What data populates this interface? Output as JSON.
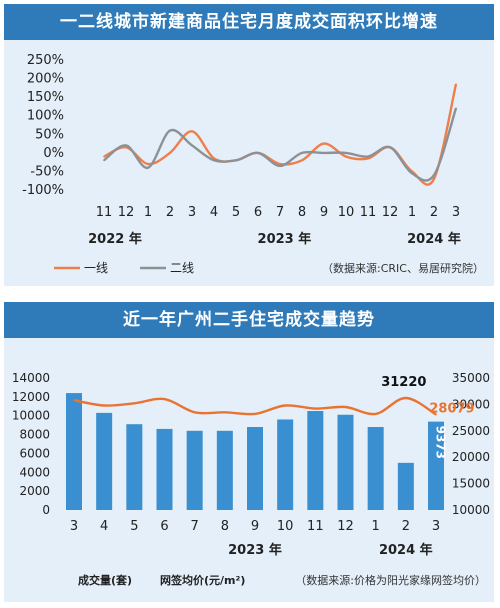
{
  "chart_data": [
    {
      "type": "line",
      "title": "一二线城市新建商品住宅月度成交面积环比增速",
      "y_ticks": [
        "250%",
        "200%",
        "150%",
        "100%",
        "50%",
        "0%",
        "-50%",
        "-100%"
      ],
      "ylim": [
        -100,
        250
      ],
      "categories": [
        "11",
        "12",
        "1",
        "2",
        "3",
        "4",
        "5",
        "6",
        "7",
        "8",
        "9",
        "10",
        "11",
        "12",
        "1",
        "2",
        "3"
      ],
      "year_labels": [
        "2022 年",
        "2023 年",
        "2024 年"
      ],
      "series": [
        {
          "name": "一线",
          "color": "#ef7f4a",
          "values": [
            -10,
            15,
            -30,
            0,
            58,
            -15,
            -20,
            0,
            -30,
            -20,
            25,
            -10,
            -15,
            15,
            -50,
            -70,
            185
          ]
        },
        {
          "name": "二线",
          "color": "#8c9196",
          "values": [
            -20,
            20,
            -40,
            60,
            20,
            -20,
            -20,
            0,
            -35,
            0,
            0,
            0,
            -10,
            15,
            -55,
            -60,
            120
          ]
        }
      ],
      "legend_position": "bottom",
      "source": "（数据来源:CRIC、易居研究院）",
      "grid": false
    },
    {
      "type": "bar",
      "title": "近一年广州二手住宅成交量趋势",
      "categories": [
        "3",
        "4",
        "5",
        "6",
        "7",
        "8",
        "9",
        "10",
        "11",
        "12",
        "1",
        "2",
        "3"
      ],
      "year_labels": [
        "2023 年",
        "2024 年"
      ],
      "y_left_ticks": [
        "14000",
        "12000",
        "10000",
        "8000",
        "6000",
        "4000",
        "2000",
        "0"
      ],
      "y_right_ticks": [
        "35000",
        "30000",
        "25000",
        "20000",
        "15000",
        "10000"
      ],
      "ylim_left": [
        0,
        14000
      ],
      "ylim_right": [
        10000,
        35000
      ],
      "series": [
        {
          "name": "成交量(套)",
          "kind": "bar",
          "axis": "left",
          "color": "#3a8fd0",
          "values": [
            12400,
            10300,
            9100,
            8600,
            8400,
            8400,
            8800,
            9600,
            10500,
            10100,
            8800,
            5000,
            9373
          ]
        },
        {
          "name": "网签均价(元/m²)",
          "kind": "line",
          "axis": "right",
          "color": "#e87432",
          "values": [
            30800,
            29800,
            30200,
            31000,
            28500,
            28500,
            28200,
            29800,
            29200,
            29500,
            28200,
            31220,
            28079
          ]
        }
      ],
      "annotations": {
        "bar_last": "9373",
        "price_peak": "31220",
        "price_last": "28079"
      },
      "legend": {
        "volume_label": "成交量(套)",
        "price_label": "网签均价(元/m²)"
      },
      "source": "（数据来源:价格为阳光家缘网签均价）",
      "grid": false
    }
  ]
}
